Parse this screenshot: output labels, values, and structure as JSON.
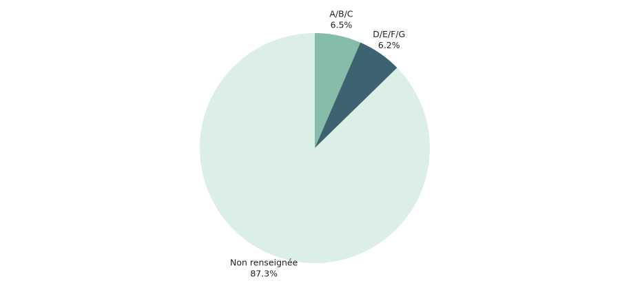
{
  "chart_data": {
    "type": "pie",
    "categories": [
      "A/B/C",
      "D/E/F/G",
      "Non renseignée"
    ],
    "values": [
      6.5,
      6.2,
      87.3
    ],
    "value_labels": [
      "6.5%",
      "6.2%",
      "87.3%"
    ],
    "colors": [
      "#86bcaa",
      "#3e6370",
      "#dbeee8"
    ]
  }
}
